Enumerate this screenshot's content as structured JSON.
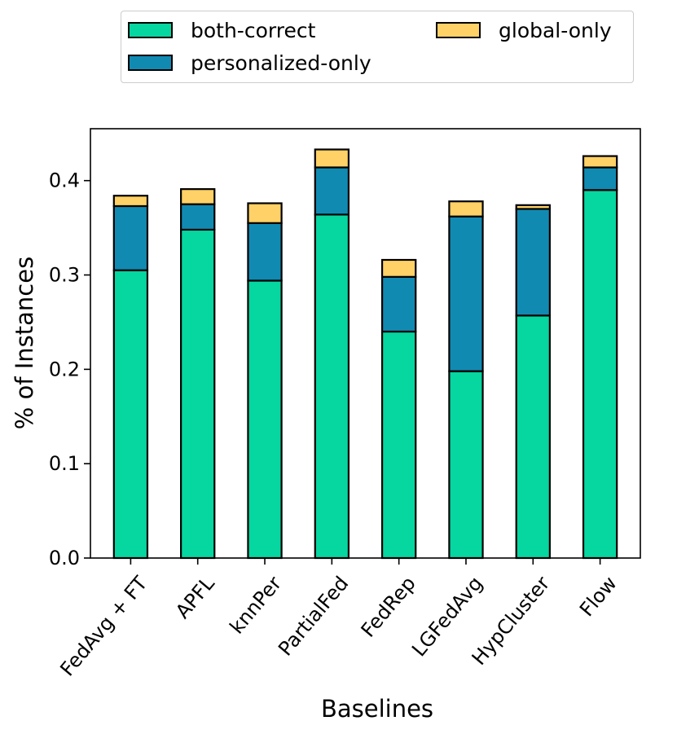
{
  "chart_data": {
    "type": "bar",
    "stacked": true,
    "title": "",
    "xlabel": "Baselines",
    "ylabel": "% of Instances",
    "ylim": [
      0,
      0.455
    ],
    "yticks": [
      0.0,
      0.1,
      0.2,
      0.3,
      0.4
    ],
    "ytick_labels": [
      "0.0",
      "0.1",
      "0.2",
      "0.3",
      "0.4"
    ],
    "categories": [
      "FedAvg + FT",
      "APFL",
      "knnPer",
      "PartialFed",
      "FedRep",
      "LGFedAvg",
      "HypCluster",
      "Flow"
    ],
    "series": [
      {
        "name": "both-correct",
        "color": "#06d6a0",
        "values": [
          0.305,
          0.348,
          0.294,
          0.364,
          0.24,
          0.198,
          0.257,
          0.39
        ]
      },
      {
        "name": "personalized-only",
        "color": "#118ab2",
        "values": [
          0.068,
          0.027,
          0.061,
          0.05,
          0.058,
          0.164,
          0.113,
          0.024
        ]
      },
      {
        "name": "global-only",
        "color": "#ffd166",
        "values": [
          0.011,
          0.016,
          0.021,
          0.019,
          0.018,
          0.016,
          0.004,
          0.012
        ]
      }
    ],
    "legend_position": "top"
  }
}
